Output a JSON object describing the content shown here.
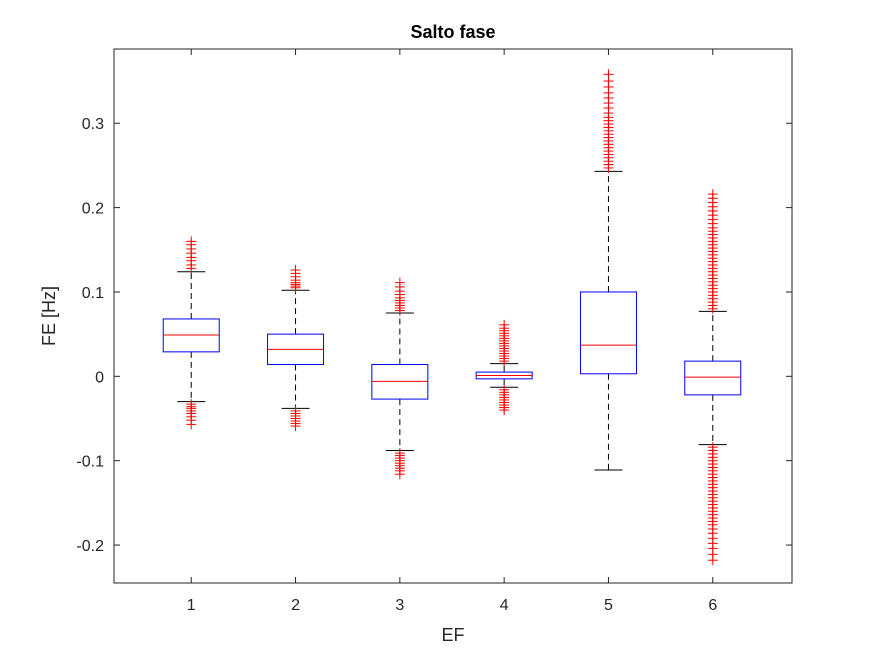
{
  "chart_data": {
    "type": "boxplot",
    "title": "Salto fase",
    "xlabel": "EF",
    "ylabel": "FE [Hz]",
    "categories": [
      "1",
      "2",
      "3",
      "4",
      "5",
      "6"
    ],
    "ylim": [
      -0.245,
      0.388
    ],
    "yticks": [
      -0.2,
      -0.1,
      0,
      0.1,
      0.2,
      0.3
    ],
    "ytick_labels": [
      "-0.2",
      "-0.1",
      "0",
      "0.1",
      "0.2",
      "0.3"
    ],
    "grid": false,
    "box_color": "#0000ff",
    "median_color": "#ff0000",
    "outlier_color": "#ff0000",
    "whisker_color": "#000000",
    "boxes": [
      {
        "category": "1",
        "whisker_low": -0.03,
        "q1": 0.029,
        "median": 0.049,
        "q3": 0.068,
        "whisker_high": 0.124,
        "outliers_low": [
          -0.033,
          -0.036,
          -0.038,
          -0.041,
          -0.044,
          -0.048,
          -0.052,
          -0.057
        ],
        "outliers_high": [
          0.128,
          0.132,
          0.137,
          0.141,
          0.146,
          0.151,
          0.156,
          0.16
        ]
      },
      {
        "category": "2",
        "whisker_low": -0.038,
        "q1": 0.014,
        "median": 0.032,
        "q3": 0.05,
        "whisker_high": 0.102,
        "outliers_low": [
          -0.041,
          -0.044,
          -0.047,
          -0.05,
          -0.053,
          -0.056,
          -0.059
        ],
        "outliers_high": [
          0.105,
          0.107,
          0.109,
          0.111,
          0.114,
          0.118,
          0.122,
          0.126
        ]
      },
      {
        "category": "3",
        "whisker_low": -0.088,
        "q1": -0.027,
        "median": -0.006,
        "q3": 0.014,
        "whisker_high": 0.075,
        "outliers_low": [
          -0.091,
          -0.094,
          -0.097,
          -0.1,
          -0.103,
          -0.106,
          -0.109,
          -0.112,
          -0.116
        ],
        "outliers_high": [
          0.078,
          0.081,
          0.084,
          0.087,
          0.09,
          0.093,
          0.097,
          0.101,
          0.106,
          0.111
        ]
      },
      {
        "category": "4",
        "whisker_low": -0.013,
        "q1": -0.003,
        "median": 0.001,
        "q3": 0.005,
        "whisker_high": 0.015,
        "outliers_low": [
          -0.016,
          -0.019,
          -0.022,
          -0.025,
          -0.028,
          -0.031,
          -0.034,
          -0.037,
          -0.04
        ],
        "outliers_high": [
          0.018,
          0.021,
          0.024,
          0.027,
          0.03,
          0.033,
          0.036,
          0.039,
          0.042,
          0.045,
          0.048,
          0.051,
          0.054,
          0.057,
          0.061
        ]
      },
      {
        "category": "5",
        "whisker_low": -0.111,
        "q1": 0.003,
        "median": 0.037,
        "q3": 0.1,
        "whisker_high": 0.243,
        "outliers_low": [],
        "outliers_high": [
          0.247,
          0.251,
          0.255,
          0.259,
          0.263,
          0.267,
          0.271,
          0.275,
          0.279,
          0.283,
          0.287,
          0.291,
          0.295,
          0.299,
          0.303,
          0.307,
          0.312,
          0.318,
          0.324,
          0.33,
          0.336,
          0.343,
          0.35,
          0.358
        ]
      },
      {
        "category": "6",
        "whisker_low": -0.081,
        "q1": -0.022,
        "median": -0.001,
        "q3": 0.018,
        "whisker_high": 0.077,
        "outliers_low": [
          -0.084,
          -0.088,
          -0.092,
          -0.096,
          -0.1,
          -0.104,
          -0.108,
          -0.112,
          -0.116,
          -0.12,
          -0.124,
          -0.128,
          -0.132,
          -0.136,
          -0.14,
          -0.144,
          -0.148,
          -0.152,
          -0.156,
          -0.16,
          -0.164,
          -0.168,
          -0.172,
          -0.176,
          -0.181,
          -0.186,
          -0.192,
          -0.198,
          -0.204,
          -0.211,
          -0.218
        ],
        "outliers_high": [
          0.08,
          0.084,
          0.088,
          0.092,
          0.096,
          0.1,
          0.104,
          0.108,
          0.112,
          0.116,
          0.12,
          0.124,
          0.128,
          0.132,
          0.136,
          0.14,
          0.144,
          0.148,
          0.152,
          0.156,
          0.16,
          0.164,
          0.168,
          0.172,
          0.176,
          0.181,
          0.186,
          0.191,
          0.196,
          0.201,
          0.206,
          0.211,
          0.216
        ]
      }
    ]
  }
}
